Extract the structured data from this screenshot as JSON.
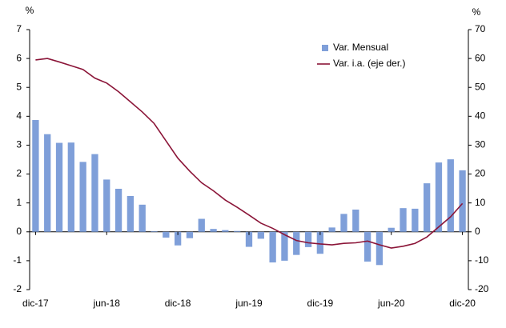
{
  "chart_data": {
    "type": "bar_line",
    "y_label": "%",
    "y2_label": "%",
    "categories": [
      "dic-17",
      null,
      null,
      null,
      null,
      null,
      "jun-18",
      null,
      null,
      null,
      null,
      null,
      "dic-18",
      null,
      null,
      null,
      null,
      null,
      "jun-19",
      null,
      null,
      null,
      null,
      null,
      "dic-19",
      null,
      null,
      null,
      null,
      null,
      "jun-20",
      null,
      null,
      null,
      null,
      null,
      "dic-20"
    ],
    "series": [
      {
        "name": "Var. Mensual",
        "type": "bar",
        "color": "#7f9fd9",
        "axis": "y",
        "values": [
          3.87,
          3.38,
          3.08,
          3.09,
          2.42,
          2.69,
          1.81,
          1.49,
          1.24,
          0.94,
          0.02,
          -0.2,
          -0.47,
          -0.22,
          0.45,
          0.1,
          0.06,
          0.03,
          -0.52,
          -0.24,
          -1.06,
          -1.0,
          -0.8,
          -0.53,
          -0.76,
          0.15,
          0.62,
          0.77,
          -1.03,
          -1.15,
          0.14,
          0.82,
          0.8,
          1.68,
          2.4,
          2.51,
          2.13
        ]
      },
      {
        "name": "Var. i.a. (eje der.)",
        "type": "line",
        "color": "#8b1538",
        "axis": "y2",
        "values": [
          59.5,
          60,
          58.8,
          57.5,
          56.2,
          53.2,
          51.5,
          48.5,
          45,
          41.5,
          37.5,
          31.5,
          25.5,
          21,
          17,
          14.2,
          11,
          8.5,
          5.8,
          3,
          1.2,
          -1,
          -3,
          -3.8,
          -4.2,
          -4.5,
          -4,
          -3.8,
          -3.2,
          -4.5,
          -5.6,
          -5,
          -4,
          -1.8,
          1.7,
          5.2,
          9.8
        ]
      }
    ],
    "ylim": [
      -2,
      7
    ],
    "yticks": [
      -2,
      -1,
      0,
      1,
      2,
      3,
      4,
      5,
      6,
      7
    ],
    "y2lim": [
      -20,
      70
    ],
    "y2ticks": [
      -20,
      -10,
      0,
      10,
      20,
      30,
      40,
      50,
      60,
      70
    ],
    "legend": "upper right"
  }
}
